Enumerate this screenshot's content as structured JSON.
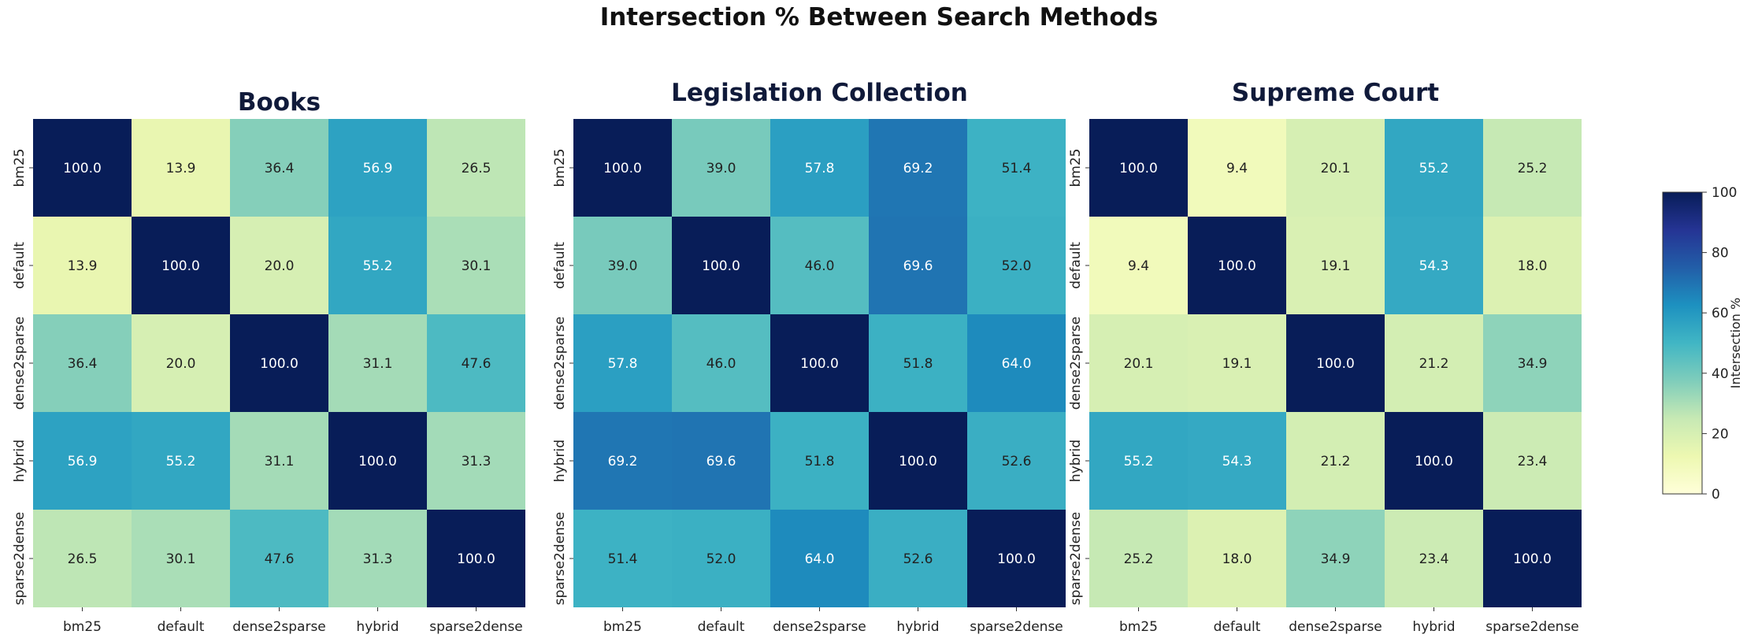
{
  "suptitle": "Intersection % Between Search Methods",
  "colormap": {
    "name": "YlGnBu",
    "stops": [
      "#ffffd9",
      "#edf8b1",
      "#c7e9b4",
      "#7fcdbb",
      "#41b6c4",
      "#1d91c0",
      "#225ea8",
      "#253494",
      "#081d58"
    ],
    "text_dark": "#222222",
    "text_light": "#ffffff"
  },
  "colorbar": {
    "label": "Intersection %",
    "range": [
      0,
      100
    ],
    "ticks": [
      "0",
      "20",
      "40",
      "60",
      "80",
      "100"
    ]
  },
  "chart_data": [
    {
      "type": "heatmap",
      "title": "Books",
      "x_labels": [
        "bm25",
        "default",
        "dense2sparse",
        "hybrid",
        "sparse2dense"
      ],
      "y_labels": [
        "bm25",
        "default",
        "dense2sparse",
        "hybrid",
        "sparse2dense"
      ],
      "values": [
        [
          100.0,
          13.9,
          36.4,
          56.9,
          26.5
        ],
        [
          13.9,
          100.0,
          20.0,
          55.2,
          30.1
        ],
        [
          36.4,
          20.0,
          100.0,
          31.1,
          47.6
        ],
        [
          56.9,
          55.2,
          31.1,
          100.0,
          31.3
        ],
        [
          26.5,
          30.1,
          47.6,
          31.3,
          100.0
        ]
      ],
      "vmin": 0,
      "vmax": 100
    },
    {
      "type": "heatmap",
      "title": "Legislation Collection",
      "x_labels": [
        "bm25",
        "default",
        "dense2sparse",
        "hybrid",
        "sparse2dense"
      ],
      "y_labels": [
        "bm25",
        "default",
        "dense2sparse",
        "hybrid",
        "sparse2dense"
      ],
      "values": [
        [
          100.0,
          39.0,
          57.8,
          69.2,
          51.4
        ],
        [
          39.0,
          100.0,
          46.0,
          69.6,
          52.0
        ],
        [
          57.8,
          46.0,
          100.0,
          51.8,
          64.0
        ],
        [
          69.2,
          69.6,
          51.8,
          100.0,
          52.6
        ],
        [
          51.4,
          52.0,
          64.0,
          52.6,
          100.0
        ]
      ],
      "vmin": 0,
      "vmax": 100
    },
    {
      "type": "heatmap",
      "title": "Supreme Court",
      "x_labels": [
        "bm25",
        "default",
        "dense2sparse",
        "hybrid",
        "sparse2dense"
      ],
      "y_labels": [
        "bm25",
        "default",
        "dense2sparse",
        "hybrid",
        "sparse2dense"
      ],
      "values": [
        [
          100.0,
          9.4,
          20.1,
          55.2,
          25.2
        ],
        [
          9.4,
          100.0,
          19.1,
          54.3,
          18.0
        ],
        [
          20.1,
          19.1,
          100.0,
          21.2,
          34.9
        ],
        [
          55.2,
          54.3,
          21.2,
          100.0,
          23.4
        ],
        [
          25.2,
          18.0,
          34.9,
          23.4,
          100.0
        ]
      ],
      "vmin": 0,
      "vmax": 100
    }
  ]
}
